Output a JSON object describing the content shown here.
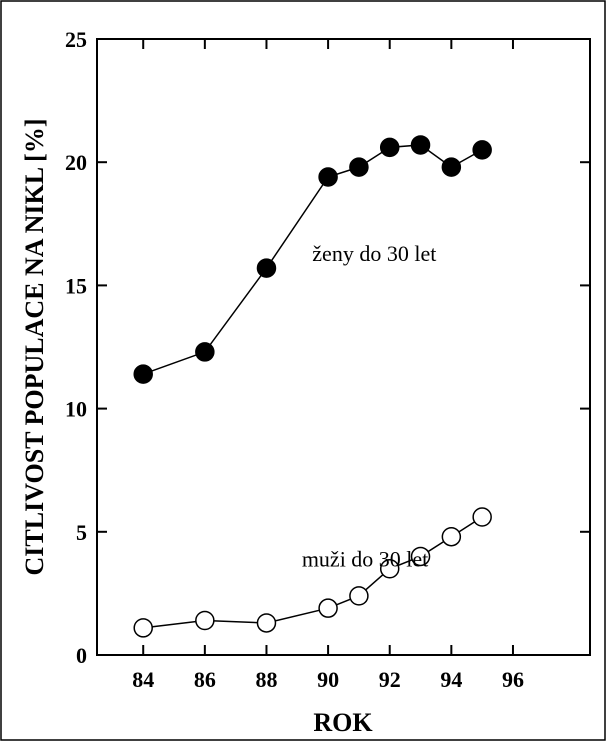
{
  "chart_data": {
    "type": "line",
    "xlabel": "ROK",
    "ylabel": "CITLIVOST POPULACE NA NIKL [%]",
    "xlim": [
      82.5,
      98.5
    ],
    "ylim": [
      0,
      25
    ],
    "x_ticks": [
      84,
      86,
      88,
      90,
      92,
      94,
      96
    ],
    "y_ticks": [
      0,
      5,
      10,
      15,
      20,
      25
    ],
    "grid": false,
    "series": [
      {
        "name": "ženy do 30 let",
        "marker": "filled-circle",
        "color": "#000000",
        "x": [
          84,
          86,
          88,
          90,
          91,
          92,
          93,
          94,
          95
        ],
        "y": [
          11.4,
          12.3,
          15.7,
          19.4,
          19.8,
          20.6,
          20.7,
          19.8,
          20.5
        ]
      },
      {
        "name": "muži do 30 let",
        "marker": "open-circle",
        "color": "#000000",
        "x": [
          84,
          86,
          88,
          90,
          91,
          92,
          93,
          94,
          95
        ],
        "y": [
          1.1,
          1.4,
          1.3,
          1.9,
          2.4,
          3.5,
          4.0,
          4.8,
          5.6
        ]
      }
    ],
    "annotations": [
      {
        "text": "ženy do 30 let",
        "x": 91.5,
        "y": 16.0
      },
      {
        "text": "muži do 30 let",
        "x": 91.2,
        "y": 3.6
      }
    ]
  }
}
